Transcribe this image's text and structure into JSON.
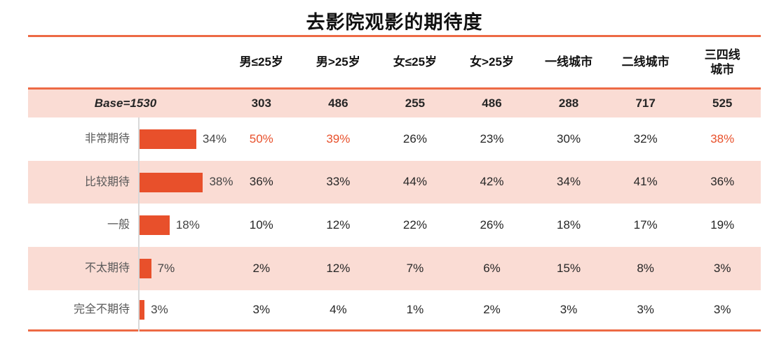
{
  "title": "去影院观影的期待度",
  "colors": {
    "accent": "#E8502B",
    "line": "#ED6A45",
    "band": "#FADCD4",
    "label_gray": "#595959",
    "text_dark": "#262626",
    "axis_gray": "#D9D9D9"
  },
  "table": {
    "base_label": "Base=1530",
    "columns": [
      "男≤25岁",
      "男>25岁",
      "女≤25岁",
      "女>25岁",
      "一线城市",
      "二线城市",
      "三四线城市"
    ],
    "base_values": [
      "303",
      "486",
      "255",
      "486",
      "288",
      "717",
      "525"
    ],
    "rows": [
      {
        "label": "非常期待",
        "pct": "34%",
        "value": 34,
        "cells": [
          {
            "text": "50%",
            "highlight": true
          },
          {
            "text": "39%",
            "highlight": true
          },
          {
            "text": "26%",
            "highlight": false
          },
          {
            "text": "23%",
            "highlight": false
          },
          {
            "text": "30%",
            "highlight": false
          },
          {
            "text": "32%",
            "highlight": false
          },
          {
            "text": "38%",
            "highlight": true
          }
        ]
      },
      {
        "label": "比较期待",
        "pct": "38%",
        "value": 38,
        "cells": [
          {
            "text": "36%",
            "highlight": false
          },
          {
            "text": "33%",
            "highlight": false
          },
          {
            "text": "44%",
            "highlight": false
          },
          {
            "text": "42%",
            "highlight": false
          },
          {
            "text": "34%",
            "highlight": false
          },
          {
            "text": "41%",
            "highlight": false
          },
          {
            "text": "36%",
            "highlight": false
          }
        ]
      },
      {
        "label": "一般",
        "pct": "18%",
        "value": 18,
        "cells": [
          {
            "text": "10%",
            "highlight": false
          },
          {
            "text": "12%",
            "highlight": false
          },
          {
            "text": "22%",
            "highlight": false
          },
          {
            "text": "26%",
            "highlight": false
          },
          {
            "text": "18%",
            "highlight": false
          },
          {
            "text": "17%",
            "highlight": false
          },
          {
            "text": "19%",
            "highlight": false
          }
        ]
      },
      {
        "label": "不太期待",
        "pct": "7%",
        "value": 7,
        "cells": [
          {
            "text": "2%",
            "highlight": false
          },
          {
            "text": "12%",
            "highlight": false
          },
          {
            "text": "7%",
            "highlight": false
          },
          {
            "text": "6%",
            "highlight": false
          },
          {
            "text": "15%",
            "highlight": false
          },
          {
            "text": "8%",
            "highlight": false
          },
          {
            "text": "3%",
            "highlight": false
          }
        ]
      },
      {
        "label": "完全不期待",
        "pct": "3%",
        "value": 3,
        "cells": [
          {
            "text": "3%",
            "highlight": false
          },
          {
            "text": "4%",
            "highlight": false
          },
          {
            "text": "1%",
            "highlight": false
          },
          {
            "text": "2%",
            "highlight": false
          },
          {
            "text": "3%",
            "highlight": false
          },
          {
            "text": "3%",
            "highlight": false
          },
          {
            "text": "3%",
            "highlight": false
          }
        ]
      }
    ]
  },
  "chart_data": {
    "type": "bar",
    "orientation": "horizontal",
    "title": "去影院观影的期待度",
    "categories": [
      "非常期待",
      "比较期待",
      "一般",
      "不太期待",
      "完全不期待"
    ],
    "values": [
      34,
      38,
      18,
      7,
      3
    ],
    "unit": "%",
    "base_total": 1530,
    "xlim": [
      0,
      50
    ],
    "grid": false,
    "segments": {
      "columns": [
        "男≤25岁",
        "男>25岁",
        "女≤25岁",
        "女>25岁",
        "一线城市",
        "二线城市",
        "三四线城市"
      ],
      "base_values": [
        303,
        486,
        255,
        486,
        288,
        717,
        525
      ],
      "series": [
        {
          "name": "非常期待",
          "values": [
            50,
            39,
            26,
            23,
            30,
            32,
            38
          ]
        },
        {
          "name": "比较期待",
          "values": [
            36,
            33,
            44,
            42,
            34,
            41,
            36
          ]
        },
        {
          "name": "一般",
          "values": [
            10,
            12,
            22,
            26,
            18,
            17,
            19
          ]
        },
        {
          "name": "不太期待",
          "values": [
            2,
            12,
            7,
            6,
            15,
            8,
            3
          ]
        },
        {
          "name": "完全不期待",
          "values": [
            3,
            4,
            1,
            2,
            3,
            3,
            3
          ]
        }
      ],
      "highlighted_cells": [
        {
          "row": "非常期待",
          "column": "男≤25岁",
          "value": 50
        },
        {
          "row": "非常期待",
          "column": "男>25岁",
          "value": 39
        },
        {
          "row": "非常期待",
          "column": "三四线城市",
          "value": 38
        }
      ]
    }
  }
}
